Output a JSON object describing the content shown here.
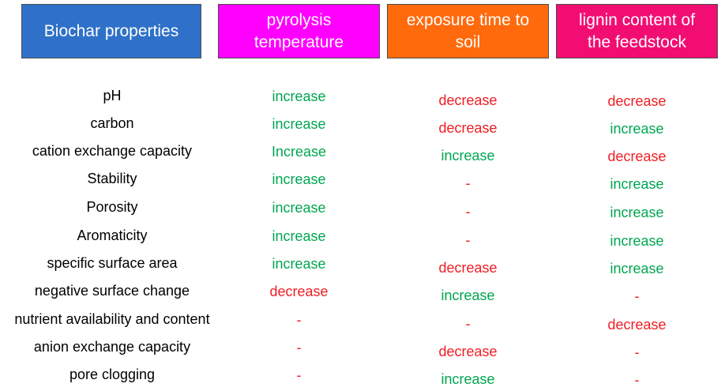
{
  "colors": {
    "properties_header_bg": "#2f71c8",
    "pyrolysis_header_bg": "#ff00ff",
    "exposure_header_bg": "#ff6a0d",
    "lignin_header_bg": "#f20d73",
    "increase": "#00a651",
    "decrease": "#ee1d23"
  },
  "headers": {
    "properties": "Biochar properties",
    "pyrolysis": "pyrolysis\ntemperature",
    "exposure": "exposure  time to\nsoil",
    "lignin": "lignin content of\nthe feedstock"
  },
  "rows": [
    {
      "property": "pH",
      "pyrolysis": "increase",
      "exposure": "decrease",
      "lignin": "decrease"
    },
    {
      "property": "carbon",
      "pyrolysis": "increase",
      "exposure": "decrease",
      "lignin": "increase"
    },
    {
      "property": "cation exchange capacity",
      "pyrolysis": "Increase",
      "exposure": "increase",
      "lignin": "decrease"
    },
    {
      "property": "Stability",
      "pyrolysis": "increase",
      "exposure": "-",
      "lignin": "increase"
    },
    {
      "property": "Porosity",
      "pyrolysis": "increase",
      "exposure": "-",
      "lignin": "increase"
    },
    {
      "property": "Aromaticity",
      "pyrolysis": "increase",
      "exposure": "-",
      "lignin": "increase"
    },
    {
      "property": "specific surface area",
      "pyrolysis": "increase",
      "exposure": "decrease",
      "lignin": "increase"
    },
    {
      "property": "negative surface change",
      "pyrolysis": "decrease",
      "exposure": "increase",
      "lignin": "-"
    },
    {
      "property": "nutrient availability and content",
      "pyrolysis": "-",
      "exposure": "-",
      "lignin": "decrease"
    },
    {
      "property": "anion exchange capacity",
      "pyrolysis": "-",
      "exposure": "decrease",
      "lignin": "-"
    },
    {
      "property": "pore clogging",
      "pyrolysis": "-",
      "exposure": "increase",
      "lignin": "-"
    }
  ]
}
